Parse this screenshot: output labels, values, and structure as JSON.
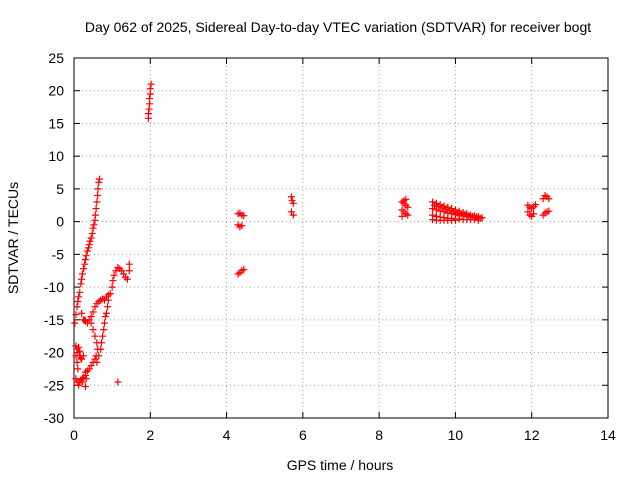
{
  "chart_data": {
    "type": "scatter",
    "title": "Day 062 of 2025, Sidereal Day-to-day VTEC variation (SDTVAR) for receiver bogt",
    "xlabel": "GPS time / hours",
    "ylabel": "SDTVAR / TECUs",
    "xlim": [
      0,
      14
    ],
    "ylim": [
      -30,
      25
    ],
    "xticks": [
      0,
      2,
      4,
      6,
      8,
      10,
      12,
      14
    ],
    "yticks": [
      -30,
      -25,
      -20,
      -15,
      -10,
      -5,
      0,
      5,
      10,
      15,
      20,
      25
    ],
    "grid": true,
    "marker": "+",
    "color": "#ff0000",
    "series_points": [
      [
        0.02,
        -15.5
      ],
      [
        0.05,
        -14.2
      ],
      [
        0.08,
        -13.0
      ],
      [
        0.1,
        -12.2
      ],
      [
        0.12,
        -11.5
      ],
      [
        0.15,
        -10.8
      ],
      [
        0.05,
        -19.0
      ],
      [
        0.08,
        -19.5
      ],
      [
        0.1,
        -20.0
      ],
      [
        0.05,
        -20.5
      ],
      [
        0.08,
        -21.5
      ],
      [
        0.1,
        -22.5
      ],
      [
        0.05,
        -24.0
      ],
      [
        0.08,
        -24.5
      ],
      [
        0.12,
        -25.0
      ],
      [
        0.15,
        -24.5
      ],
      [
        0.18,
        -24.2
      ],
      [
        0.22,
        -24.0
      ],
      [
        0.15,
        -20.5
      ],
      [
        0.18,
        -20.8
      ],
      [
        0.2,
        -21.0
      ],
      [
        0.25,
        -20.5
      ],
      [
        0.12,
        -19.2
      ],
      [
        0.15,
        -19.8
      ],
      [
        0.28,
        -15.0
      ],
      [
        0.3,
        -25.2
      ],
      [
        0.32,
        -24.0
      ],
      [
        0.3,
        -23.0
      ],
      [
        0.18,
        -9.5
      ],
      [
        0.2,
        -8.8
      ],
      [
        0.22,
        -8.0
      ],
      [
        0.25,
        -7.2
      ],
      [
        0.28,
        -6.5
      ],
      [
        0.3,
        -5.8
      ],
      [
        0.32,
        -5.2
      ],
      [
        0.35,
        -4.5
      ],
      [
        0.38,
        -4.0
      ],
      [
        0.4,
        -3.5
      ],
      [
        0.42,
        -3.0
      ],
      [
        0.45,
        -2.5
      ],
      [
        0.48,
        -1.8
      ],
      [
        0.5,
        -1.0
      ],
      [
        0.52,
        -0.5
      ],
      [
        0.55,
        0.2
      ],
      [
        0.56,
        1.0
      ],
      [
        0.58,
        2.0
      ],
      [
        0.6,
        3.0
      ],
      [
        0.62,
        4.0
      ],
      [
        0.63,
        5.0
      ],
      [
        0.65,
        6.0
      ],
      [
        0.67,
        6.5
      ],
      [
        0.2,
        -14.0
      ],
      [
        0.25,
        -15.0
      ],
      [
        0.3,
        -15.2
      ],
      [
        0.35,
        -15.5
      ],
      [
        0.4,
        -15.0
      ],
      [
        0.45,
        -14.5
      ],
      [
        0.5,
        -13.8
      ],
      [
        0.55,
        -13.0
      ],
      [
        0.6,
        -12.5
      ],
      [
        0.65,
        -12.2
      ],
      [
        0.7,
        -12.0
      ],
      [
        0.75,
        -11.8
      ],
      [
        0.8,
        -12.0
      ],
      [
        0.85,
        -11.5
      ],
      [
        0.9,
        -11.2
      ],
      [
        0.45,
        -15.5
      ],
      [
        0.5,
        -16.5
      ],
      [
        0.55,
        -17.5
      ],
      [
        0.6,
        -18.5
      ],
      [
        0.62,
        -19.5
      ],
      [
        0.58,
        -20.5
      ],
      [
        0.55,
        -21.0
      ],
      [
        0.5,
        -21.5
      ],
      [
        0.45,
        -22.0
      ],
      [
        0.4,
        -22.5
      ],
      [
        0.35,
        -22.8
      ],
      [
        0.3,
        -23.5
      ],
      [
        0.25,
        -23.8
      ],
      [
        0.22,
        -24.5
      ],
      [
        0.6,
        -21.5
      ],
      [
        0.65,
        -20.5
      ],
      [
        0.7,
        -19.5
      ],
      [
        0.72,
        -18.5
      ],
      [
        0.75,
        -17.5
      ],
      [
        0.78,
        -16.5
      ],
      [
        0.8,
        -15.5
      ],
      [
        0.82,
        -14.5
      ],
      [
        0.85,
        -14.0
      ],
      [
        0.88,
        -13.0
      ],
      [
        0.9,
        -12.0
      ],
      [
        0.95,
        -11.0
      ],
      [
        1.0,
        -10.0
      ],
      [
        1.02,
        -9.0
      ],
      [
        1.05,
        -8.2
      ],
      [
        1.1,
        -7.5
      ],
      [
        1.15,
        -7.0
      ],
      [
        1.2,
        -7.2
      ],
      [
        1.25,
        -7.5
      ],
      [
        1.3,
        -8.0
      ],
      [
        1.35,
        -8.5
      ],
      [
        1.4,
        -8.8
      ],
      [
        1.45,
        -6.5
      ],
      [
        1.45,
        -7.5
      ],
      [
        1.15,
        -24.5
      ],
      [
        1.95,
        15.8
      ],
      [
        1.95,
        16.5
      ],
      [
        1.97,
        17.2
      ],
      [
        1.98,
        18.0
      ],
      [
        1.98,
        18.8
      ],
      [
        2.0,
        19.5
      ],
      [
        2.0,
        20.3
      ],
      [
        2.02,
        21.0
      ],
      [
        4.3,
        1.2
      ],
      [
        4.35,
        1.3
      ],
      [
        4.4,
        1.0
      ],
      [
        4.45,
        0.9
      ],
      [
        4.3,
        -0.5
      ],
      [
        4.35,
        -0.8
      ],
      [
        4.4,
        -0.6
      ],
      [
        4.3,
        -8.0
      ],
      [
        4.35,
        -7.8
      ],
      [
        4.4,
        -7.5
      ],
      [
        4.45,
        -7.3
      ],
      [
        5.7,
        3.8
      ],
      [
        5.72,
        3.2
      ],
      [
        5.75,
        2.8
      ],
      [
        5.7,
        1.5
      ],
      [
        5.75,
        1.0
      ],
      [
        8.6,
        3.0
      ],
      [
        8.65,
        2.8
      ],
      [
        8.7,
        2.5
      ],
      [
        8.75,
        2.2
      ],
      [
        8.6,
        1.8
      ],
      [
        8.65,
        1.5
      ],
      [
        8.7,
        1.2
      ],
      [
        8.75,
        1.0
      ],
      [
        8.6,
        0.8
      ],
      [
        8.65,
        3.2
      ],
      [
        8.7,
        3.4
      ],
      [
        9.4,
        3.0
      ],
      [
        9.5,
        2.8
      ],
      [
        9.6,
        2.6
      ],
      [
        9.7,
        2.4
      ],
      [
        9.8,
        2.2
      ],
      [
        9.9,
        2.0
      ],
      [
        10.0,
        1.8
      ],
      [
        10.1,
        1.6
      ],
      [
        10.2,
        1.4
      ],
      [
        10.3,
        1.2
      ],
      [
        10.4,
        1.0
      ],
      [
        10.5,
        0.9
      ],
      [
        10.6,
        0.8
      ],
      [
        10.7,
        0.6
      ],
      [
        9.4,
        2.0
      ],
      [
        9.5,
        1.8
      ],
      [
        9.6,
        1.6
      ],
      [
        9.7,
        1.5
      ],
      [
        9.8,
        1.3
      ],
      [
        9.9,
        1.2
      ],
      [
        10.0,
        1.1
      ],
      [
        10.1,
        1.0
      ],
      [
        10.2,
        0.9
      ],
      [
        10.3,
        0.8
      ],
      [
        10.4,
        0.7
      ],
      [
        10.5,
        0.6
      ],
      [
        10.6,
        0.5
      ],
      [
        9.4,
        1.0
      ],
      [
        9.5,
        0.8
      ],
      [
        9.6,
        0.7
      ],
      [
        9.7,
        0.6
      ],
      [
        9.8,
        0.5
      ],
      [
        9.9,
        0.5
      ],
      [
        10.0,
        0.4
      ],
      [
        10.1,
        0.4
      ],
      [
        10.2,
        0.3
      ],
      [
        10.3,
        0.3
      ],
      [
        10.4,
        0.3
      ],
      [
        10.5,
        0.3
      ],
      [
        10.6,
        0.2
      ],
      [
        9.4,
        0.3
      ],
      [
        9.5,
        0.2
      ],
      [
        9.6,
        0.2
      ],
      [
        9.7,
        0.2
      ],
      [
        9.8,
        0.2
      ],
      [
        9.9,
        0.2
      ],
      [
        10.0,
        0.2
      ],
      [
        9.45,
        2.5
      ],
      [
        9.55,
        2.3
      ],
      [
        9.65,
        2.1
      ],
      [
        9.75,
        1.9
      ],
      [
        9.85,
        1.7
      ],
      [
        9.95,
        1.5
      ],
      [
        10.05,
        1.3
      ],
      [
        10.15,
        1.2
      ],
      [
        10.25,
        1.1
      ],
      [
        10.35,
        0.9
      ],
      [
        10.45,
        0.8
      ],
      [
        10.55,
        0.7
      ],
      [
        10.65,
        0.5
      ],
      [
        11.9,
        2.5
      ],
      [
        11.95,
        2.2
      ],
      [
        12.0,
        2.0
      ],
      [
        12.05,
        2.3
      ],
      [
        12.1,
        2.6
      ],
      [
        11.9,
        1.5
      ],
      [
        11.95,
        1.0
      ],
      [
        12.0,
        0.8
      ],
      [
        12.05,
        1.2
      ],
      [
        12.3,
        3.5
      ],
      [
        12.35,
        4.0
      ],
      [
        12.4,
        3.8
      ],
      [
        12.45,
        3.5
      ],
      [
        12.3,
        1.0
      ],
      [
        12.35,
        1.3
      ],
      [
        12.4,
        1.5
      ],
      [
        12.45,
        1.6
      ]
    ]
  }
}
